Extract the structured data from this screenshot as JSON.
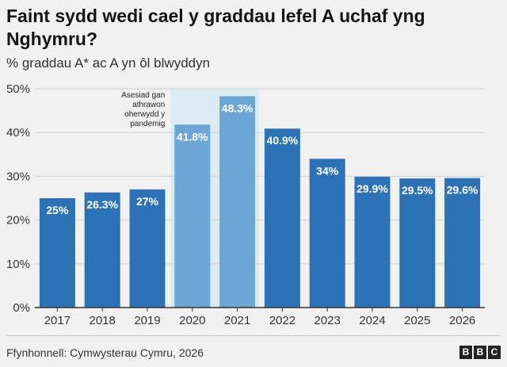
{
  "header": {
    "title": "Faint sydd wedi cael y graddau lefel A uchaf yng Nghymru?",
    "subtitle": "% graddau A* ac A yn ôl blwyddyn"
  },
  "footer": {
    "source": "Ffynhonnell: Cymwysterau Cymru, 2026",
    "logo_letters": [
      "B",
      "B",
      "C"
    ]
  },
  "colors": {
    "bar": "#2c72b5",
    "bar_highlight": "#6ca6d3",
    "highlight_band": "#dcebf1",
    "background": "#f1f1f1",
    "grid": "#cfcfcf"
  },
  "chart_data": {
    "type": "bar",
    "categories": [
      "2017",
      "2018",
      "2019",
      "2020",
      "2021",
      "2022",
      "2023",
      "2024",
      "2025",
      "2026"
    ],
    "values": [
      25,
      26.3,
      27,
      41.8,
      48.3,
      40.9,
      34,
      29.9,
      29.5,
      29.6
    ],
    "value_labels": [
      "25%",
      "26.3%",
      "27%",
      "41.8%",
      "48.3%",
      "40.9%",
      "34%",
      "29.9%",
      "29.5%",
      "29.6%"
    ],
    "highlighted_categories": [
      "2020",
      "2021"
    ],
    "ylim": [
      0,
      50
    ],
    "yticks": [
      0,
      10,
      20,
      30,
      40,
      50
    ],
    "ytick_labels": [
      "0%",
      "10%",
      "20%",
      "30%",
      "40%",
      "50%"
    ],
    "grid": true,
    "annotation": {
      "lines": [
        "Asesiad gan",
        "athrawon",
        "oherwydd y",
        "pandemig"
      ],
      "near_category": "2020"
    }
  }
}
